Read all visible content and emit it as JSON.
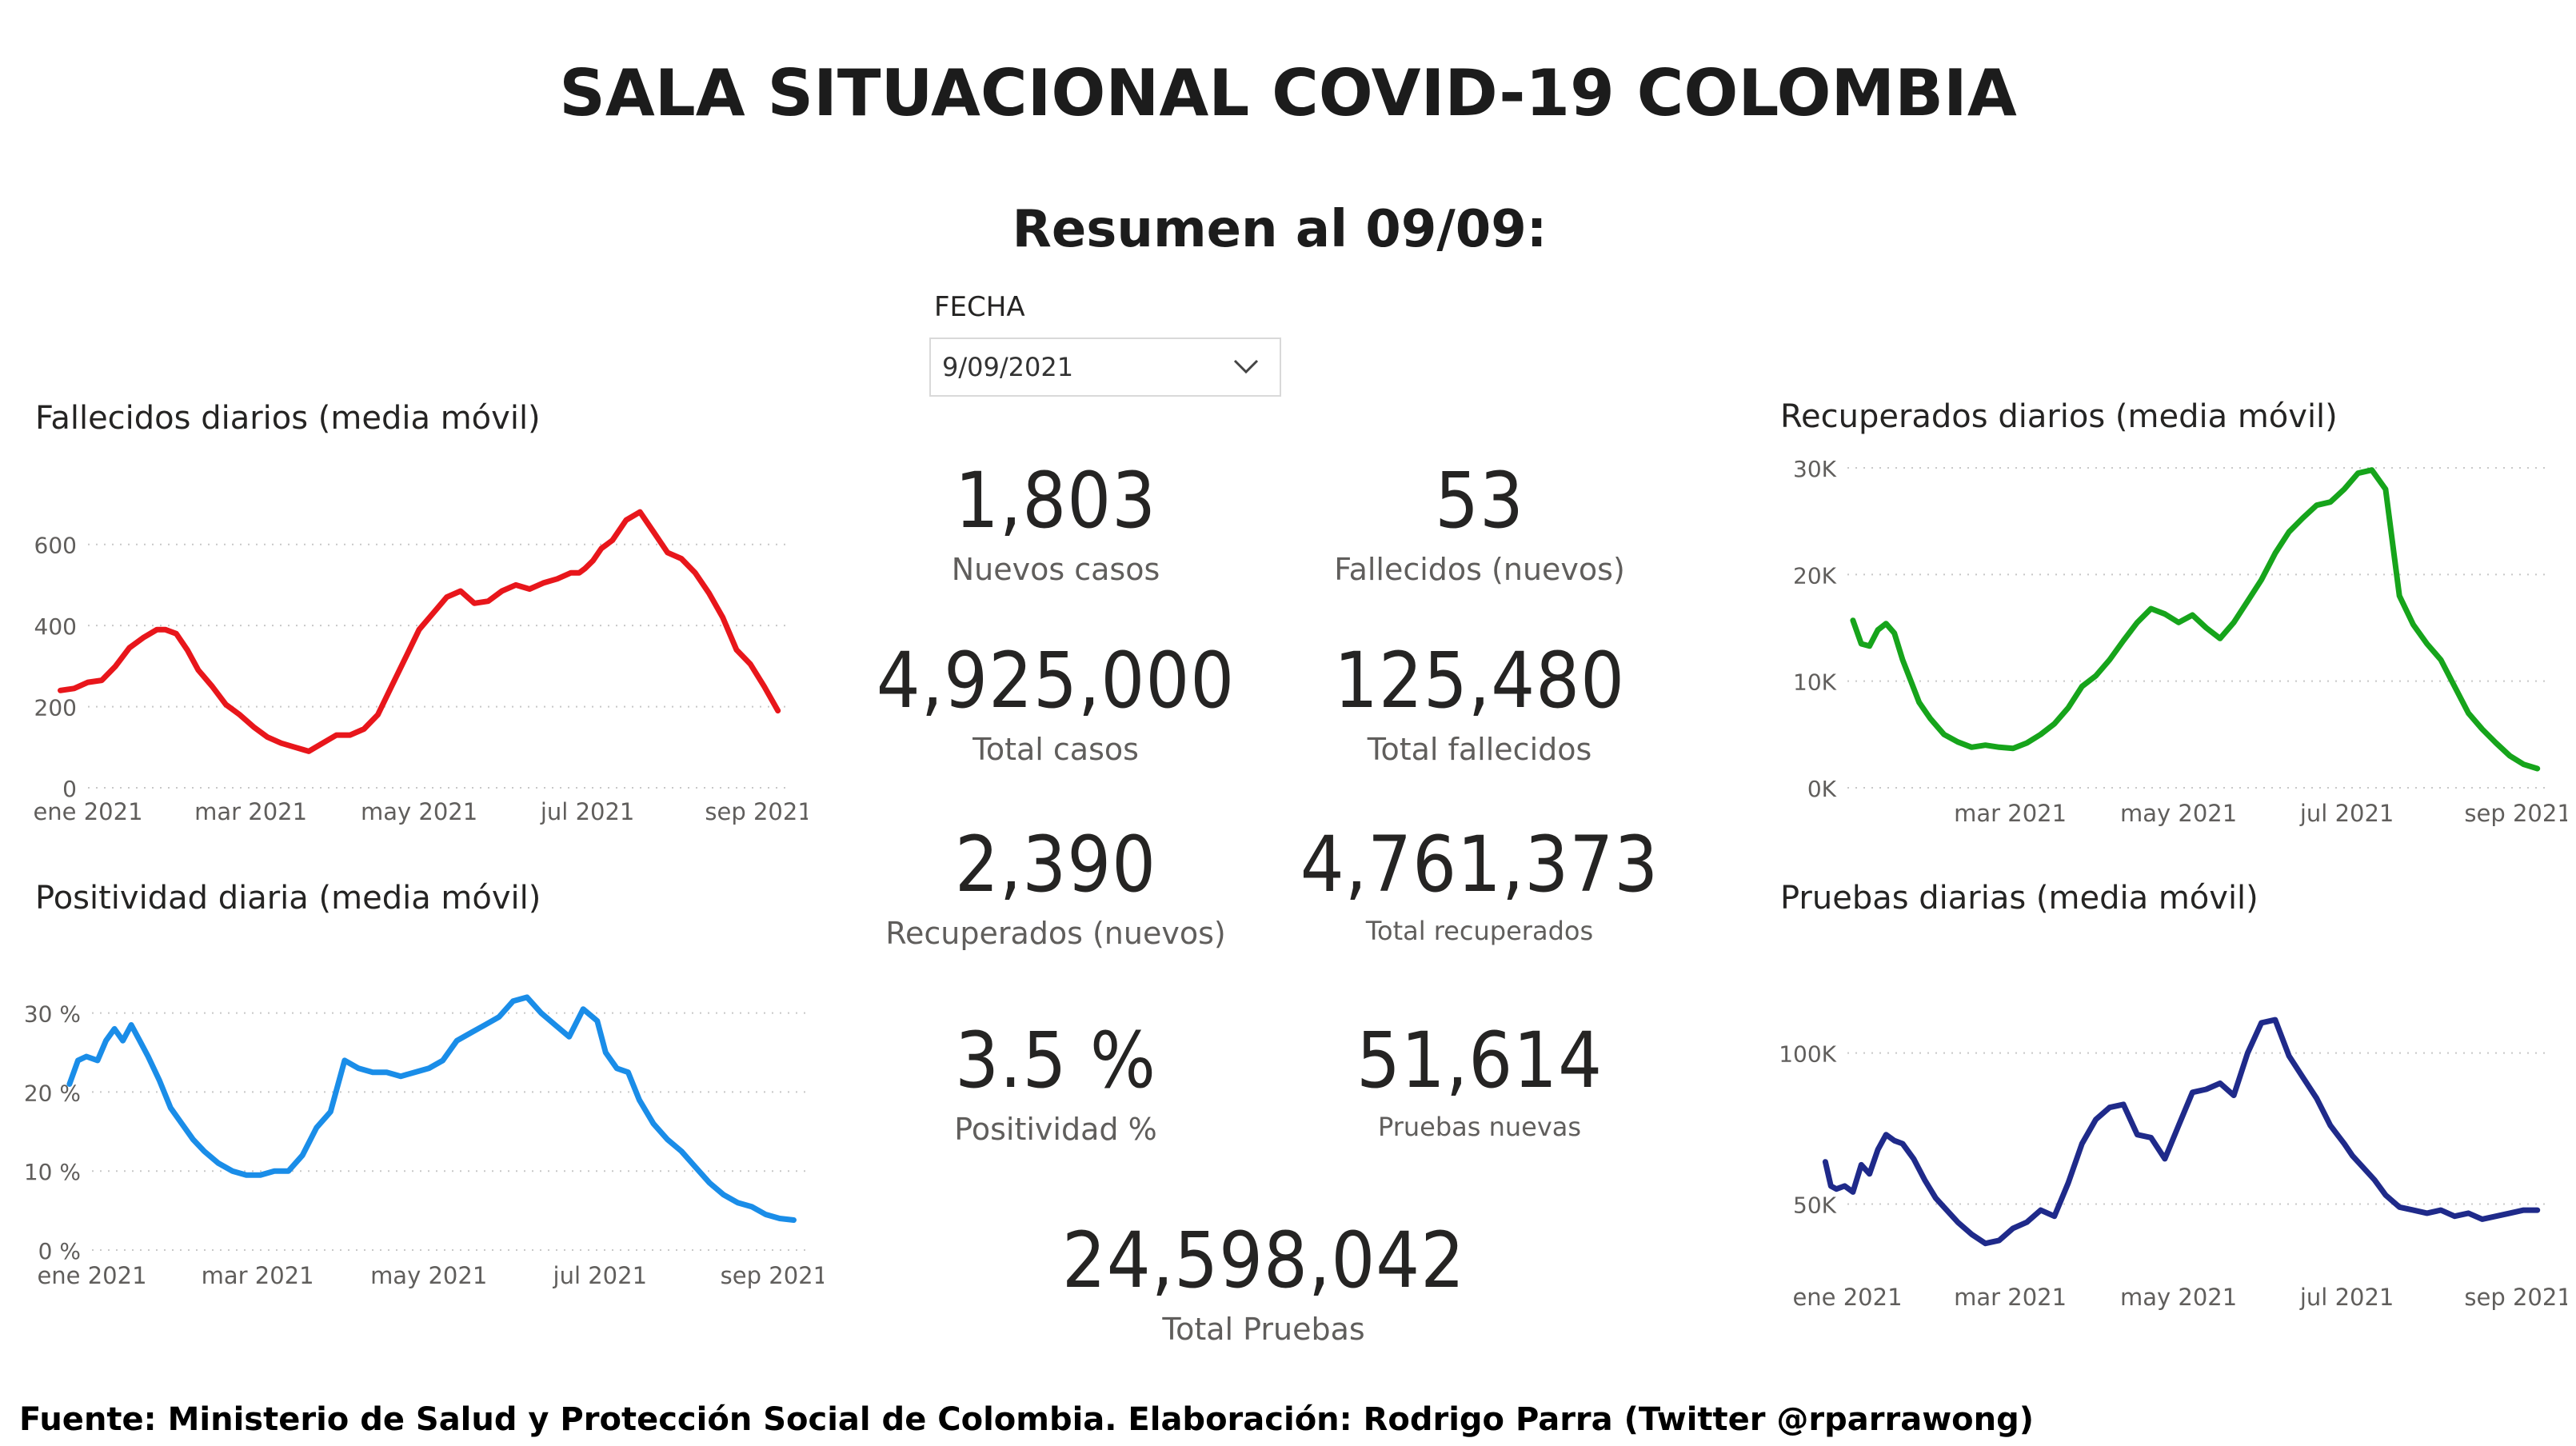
{
  "title": "SALA SITUACIONAL COVID-19 COLOMBIA",
  "subtitle": "Resumen al 09/09:",
  "filter": {
    "label": "FECHA",
    "value": "9/09/2021"
  },
  "kpis": {
    "nuevos_casos": {
      "value": "1,803",
      "label": "Nuevos casos"
    },
    "fallecidos_nuevos": {
      "value": "53",
      "label": "Fallecidos (nuevos)"
    },
    "total_casos": {
      "value": "4,925,000",
      "label": "Total casos"
    },
    "total_fallecidos": {
      "value": "125,480",
      "label": "Total fallecidos"
    },
    "recuperados_nuevos": {
      "value": "2,390",
      "label": "Recuperados (nuevos)"
    },
    "total_recuperados": {
      "value": "4,761,373",
      "label": "Total recuperados"
    },
    "positividad": {
      "value": "3.5 %",
      "label": "Positividad %"
    },
    "pruebas_nuevas": {
      "value": "51,614",
      "label": "Pruebas nuevas"
    },
    "total_pruebas": {
      "value": "24,598,042",
      "label": "Total Pruebas"
    }
  },
  "footer": "Fuente: Ministerio de Salud y Protección Social de Colombia. Elaboración: Rodrigo Parra (Twitter @rparrawong)",
  "chart_data": [
    {
      "id": "fallecidos",
      "type": "line",
      "title": "Fallecidos diarios (media móvil)",
      "color": "#e8161b",
      "ylim": [
        0,
        700
      ],
      "yticks": [
        0,
        200,
        400,
        600
      ],
      "ytick_labels": [
        "0",
        "200",
        "400",
        "600"
      ],
      "xlim": [
        0,
        255
      ],
      "xticks": [
        0,
        59,
        120,
        181,
        243
      ],
      "xtick_labels": [
        "ene 2021",
        "mar 2021",
        "may 2021",
        "jul 2021",
        "sep 2021"
      ],
      "grid": true,
      "x": [
        -10,
        -5,
        0,
        5,
        10,
        15,
        20,
        25,
        28,
        32,
        36,
        40,
        45,
        50,
        55,
        60,
        65,
        70,
        75,
        80,
        85,
        90,
        95,
        100,
        105,
        110,
        115,
        120,
        125,
        130,
        135,
        140,
        145,
        150,
        155,
        160,
        165,
        170,
        175,
        178,
        180,
        183,
        186,
        190,
        195,
        200,
        205,
        210,
        215,
        220,
        225,
        230,
        235,
        240,
        245,
        250
      ],
      "y": [
        240,
        245,
        260,
        265,
        300,
        345,
        370,
        390,
        390,
        380,
        340,
        290,
        250,
        205,
        180,
        150,
        125,
        110,
        100,
        90,
        110,
        130,
        130,
        145,
        180,
        250,
        320,
        390,
        430,
        470,
        485,
        455,
        460,
        485,
        500,
        490,
        505,
        515,
        530,
        530,
        540,
        560,
        590,
        610,
        660,
        680,
        630,
        580,
        565,
        530,
        480,
        420,
        340,
        305,
        250,
        190
      ]
    },
    {
      "id": "recuperados",
      "type": "line",
      "title": "Recuperados diarios (media móvil)",
      "color": "#16a41b",
      "ylim": [
        0,
        30000
      ],
      "yticks": [
        0,
        10000,
        20000,
        30000
      ],
      "ytick_labels": [
        "0K",
        "10K",
        "20K",
        "30K"
      ],
      "xlim": [
        0,
        255
      ],
      "xticks": [
        59,
        120,
        181,
        243
      ],
      "xtick_labels": [
        "mar 2021",
        "may 2021",
        "jul 2021",
        "sep 2021"
      ],
      "grid": true,
      "x": [
        2,
        5,
        8,
        11,
        14,
        17,
        20,
        23,
        26,
        30,
        35,
        40,
        45,
        50,
        55,
        60,
        65,
        70,
        75,
        80,
        85,
        90,
        95,
        100,
        105,
        110,
        115,
        120,
        125,
        130,
        135,
        140,
        145,
        150,
        155,
        160,
        165,
        170,
        175,
        180,
        185,
        190,
        195,
        200,
        205,
        210,
        215,
        220,
        225,
        230,
        235,
        240,
        245,
        250
      ],
      "y": [
        15700,
        13500,
        13300,
        14800,
        15400,
        14500,
        12000,
        10000,
        8000,
        6500,
        5000,
        4300,
        3800,
        4000,
        3800,
        3700,
        4200,
        5000,
        6000,
        7500,
        9500,
        10500,
        12000,
        13800,
        15500,
        16800,
        16300,
        15500,
        16200,
        15000,
        14000,
        15500,
        17500,
        19500,
        22000,
        24000,
        25300,
        26500,
        26800,
        28000,
        29500,
        29800,
        28000,
        18000,
        15300,
        13500,
        12000,
        9500,
        7000,
        5500,
        4200,
        3000,
        2200,
        1800
      ]
    },
    {
      "id": "positividad",
      "type": "line",
      "title": "Positividad diaria (media móvil)",
      "color": "#1a8de8",
      "ylim": [
        0,
        33
      ],
      "yticks": [
        0,
        10,
        20,
        30
      ],
      "ytick_labels": [
        "0 %",
        "10 %",
        "20 %",
        "30 %"
      ],
      "xlim": [
        0,
        255
      ],
      "xticks": [
        0,
        59,
        120,
        181,
        243
      ],
      "xtick_labels": [
        "ene 2021",
        "mar 2021",
        "may 2021",
        "jul 2021",
        "sep 2021"
      ],
      "grid": true,
      "x": [
        -8,
        -5,
        -2,
        2,
        5,
        8,
        11,
        14,
        17,
        20,
        24,
        28,
        32,
        36,
        40,
        45,
        50,
        55,
        60,
        65,
        70,
        75,
        80,
        85,
        90,
        95,
        100,
        105,
        110,
        115,
        120,
        125,
        130,
        135,
        140,
        145,
        150,
        155,
        160,
        165,
        170,
        175,
        180,
        183,
        187,
        191,
        195,
        200,
        205,
        210,
        215,
        220,
        225,
        230,
        235,
        240,
        245,
        250
      ],
      "y": [
        21,
        24,
        24.5,
        24,
        26.5,
        28,
        26.5,
        28.5,
        26.5,
        24.5,
        21.5,
        18,
        16,
        14,
        12.5,
        11,
        10,
        9.5,
        9.5,
        10,
        10,
        12,
        15.5,
        17.5,
        24,
        23,
        22.5,
        22.5,
        22,
        22.5,
        23,
        24,
        26.5,
        27.5,
        28.5,
        29.5,
        31.5,
        32,
        30,
        28.5,
        27,
        30.5,
        29,
        25,
        23,
        22.5,
        19,
        16,
        14,
        12.5,
        10.5,
        8.5,
        7,
        6,
        5.5,
        4.5,
        4,
        3.8
      ]
    },
    {
      "id": "pruebas",
      "type": "line",
      "title": "Pruebas diarias (media móvil)",
      "color": "#1f2a8a",
      "ylim": [
        25000,
        115000
      ],
      "yticks": [
        50000,
        100000
      ],
      "ytick_labels": [
        "50K",
        "100K"
      ],
      "xlim": [
        0,
        255
      ],
      "xticks": [
        0,
        59,
        120,
        181,
        243
      ],
      "xtick_labels": [
        "ene 2021",
        "mar 2021",
        "may 2021",
        "jul 2021",
        "sep 2021"
      ],
      "grid": true,
      "x": [
        -8,
        -6,
        -4,
        -1,
        2,
        5,
        8,
        11,
        14,
        17,
        20,
        24,
        28,
        32,
        36,
        40,
        45,
        50,
        55,
        60,
        65,
        70,
        75,
        80,
        85,
        90,
        95,
        100,
        105,
        110,
        115,
        120,
        125,
        130,
        135,
        140,
        145,
        150,
        155,
        160,
        165,
        170,
        175,
        180,
        183,
        187,
        191,
        195,
        200,
        205,
        210,
        215,
        220,
        225,
        230,
        235,
        240,
        245,
        250
      ],
      "y": [
        64000,
        56000,
        55000,
        56000,
        54000,
        63000,
        60000,
        68000,
        73000,
        71000,
        70000,
        65000,
        58000,
        52000,
        48000,
        44000,
        40000,
        37000,
        38000,
        42000,
        44000,
        48000,
        46000,
        57000,
        70000,
        78000,
        82000,
        83000,
        73000,
        72000,
        65000,
        76000,
        87000,
        88000,
        90000,
        86000,
        100000,
        110000,
        111000,
        99000,
        92000,
        85000,
        76000,
        70000,
        66000,
        62000,
        58000,
        53000,
        49000,
        48000,
        47000,
        48000,
        46000,
        47000,
        45000,
        46000,
        47000,
        48000,
        48000
      ]
    }
  ]
}
